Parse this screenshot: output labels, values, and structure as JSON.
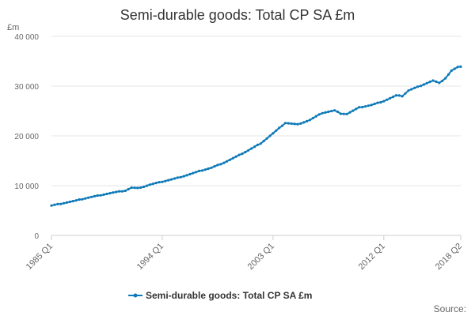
{
  "chart_data": {
    "type": "line",
    "title": "Semi-durable goods: Total CP SA £m",
    "unit_label": "£m",
    "ylim": [
      0,
      40000
    ],
    "y_ticks": [
      {
        "value": 0,
        "label": "0"
      },
      {
        "value": 10000,
        "label": "10 000"
      },
      {
        "value": 20000,
        "label": "20 000"
      },
      {
        "value": 30000,
        "label": "30 000"
      },
      {
        "value": 40000,
        "label": "40 000"
      }
    ],
    "x_ticks": [
      "1985 Q1",
      "1994 Q1",
      "2003 Q1",
      "2012 Q1",
      "2018 Q2"
    ],
    "grid": "horizontal",
    "legend_position": "bottom",
    "credit": "Source:",
    "series": [
      {
        "name": "Semi-durable goods: Total CP SA £m",
        "color": "#0f7ab8",
        "points": [
          [
            "1985 Q1",
            6000
          ],
          [
            "1986 Q1",
            6500
          ],
          [
            "1987 Q1",
            7000
          ],
          [
            "1988 Q1",
            7600
          ],
          [
            "1989 Q1",
            8100
          ],
          [
            "1990 Q1",
            8600
          ],
          [
            "1991 Q1",
            9000
          ],
          [
            "1991 Q3",
            9600
          ],
          [
            "1992 Q1",
            9500
          ],
          [
            "1992 Q3",
            9800
          ],
          [
            "1993 Q1",
            10200
          ],
          [
            "1994 Q1",
            10800
          ],
          [
            "1995 Q1",
            11400
          ],
          [
            "1996 Q1",
            12100
          ],
          [
            "1997 Q1",
            12900
          ],
          [
            "1998 Q1",
            13600
          ],
          [
            "1999 Q1",
            14600
          ],
          [
            "2000 Q1",
            15800
          ],
          [
            "2001 Q1",
            17100
          ],
          [
            "2002 Q1",
            18500
          ],
          [
            "2003 Q1",
            20500
          ],
          [
            "2004 Q1",
            22600
          ],
          [
            "2005 Q1",
            22300
          ],
          [
            "2006 Q1",
            23200
          ],
          [
            "2007 Q1",
            24600
          ],
          [
            "2008 Q1",
            25100
          ],
          [
            "2008 Q3",
            24500
          ],
          [
            "2009 Q1",
            24400
          ],
          [
            "2010 Q1",
            25700
          ],
          [
            "2011 Q1",
            26200
          ],
          [
            "2012 Q1",
            27000
          ],
          [
            "2013 Q1",
            28100
          ],
          [
            "2013 Q3",
            28000
          ],
          [
            "2014 Q1",
            29100
          ],
          [
            "2015 Q1",
            30100
          ],
          [
            "2016 Q1",
            31100
          ],
          [
            "2016 Q3",
            30600
          ],
          [
            "2017 Q1",
            31600
          ],
          [
            "2017 Q3",
            33100
          ],
          [
            "2018 Q1",
            33800
          ],
          [
            "2018 Q2",
            33900
          ]
        ]
      }
    ]
  }
}
